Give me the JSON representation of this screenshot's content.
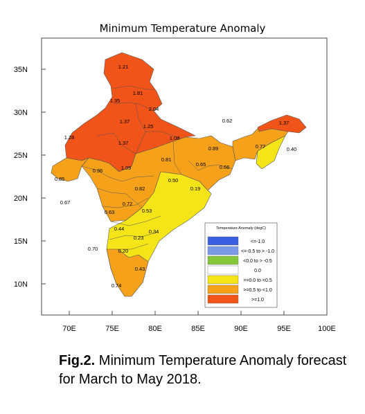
{
  "title": "Minimum Temperature Anomaly",
  "colors": {
    "bin1": "#3a5fe0",
    "bin2": "#7a9ae8",
    "bin3": "#86c63a",
    "bin4": "#ffffff",
    "bin5": "#f5e418",
    "bin6": "#f5a21a",
    "bin7": "#f05418"
  },
  "axes": {
    "x_ticks": [
      "70E",
      "75E",
      "80E",
      "85E",
      "90E",
      "95E",
      "100E"
    ],
    "y_ticks": [
      "35N",
      "30N",
      "25N",
      "20N",
      "15N",
      "10N"
    ]
  },
  "legend": {
    "title": "Temperature Anomaly (degC)",
    "items": [
      {
        "label": "<=-1.0",
        "color": "#3a5fe0"
      },
      {
        "label": "<=-0.5 to > -1.0",
        "color": "#7a9ae8"
      },
      {
        "label": "<0.0 to > -0.5",
        "color": "#86c63a"
      },
      {
        "label": "0.0",
        "color": "#ffffff"
      },
      {
        "label": ">=0.0 to <0.5",
        "color": "#f5e418"
      },
      {
        "label": ">=0.5 to <1.0",
        "color": "#f5a21a"
      },
      {
        "label": ">=1.0",
        "color": "#f05418"
      }
    ]
  },
  "values": [
    "1.21",
    "1.81",
    "1.35",
    "2.04",
    "1.37",
    "1.25",
    "1.28",
    "1.37",
    "1.08",
    "1.09",
    "0.62",
    "1.37",
    "0.89",
    "0.77",
    "0.40",
    "0.81",
    "0.65",
    "0.66",
    "0.96",
    "0.85",
    "0.50",
    "0.19",
    "0.82",
    "0.67",
    "0.72",
    "0.63",
    "0.53",
    "0.44",
    "0.34",
    "0.23",
    "0.20",
    "0.70",
    "0.43",
    "0.74"
  ],
  "caption": {
    "bold": "Fig.2.",
    "text": " Minimum Temperature Anomaly forecast for March to May 2018."
  }
}
